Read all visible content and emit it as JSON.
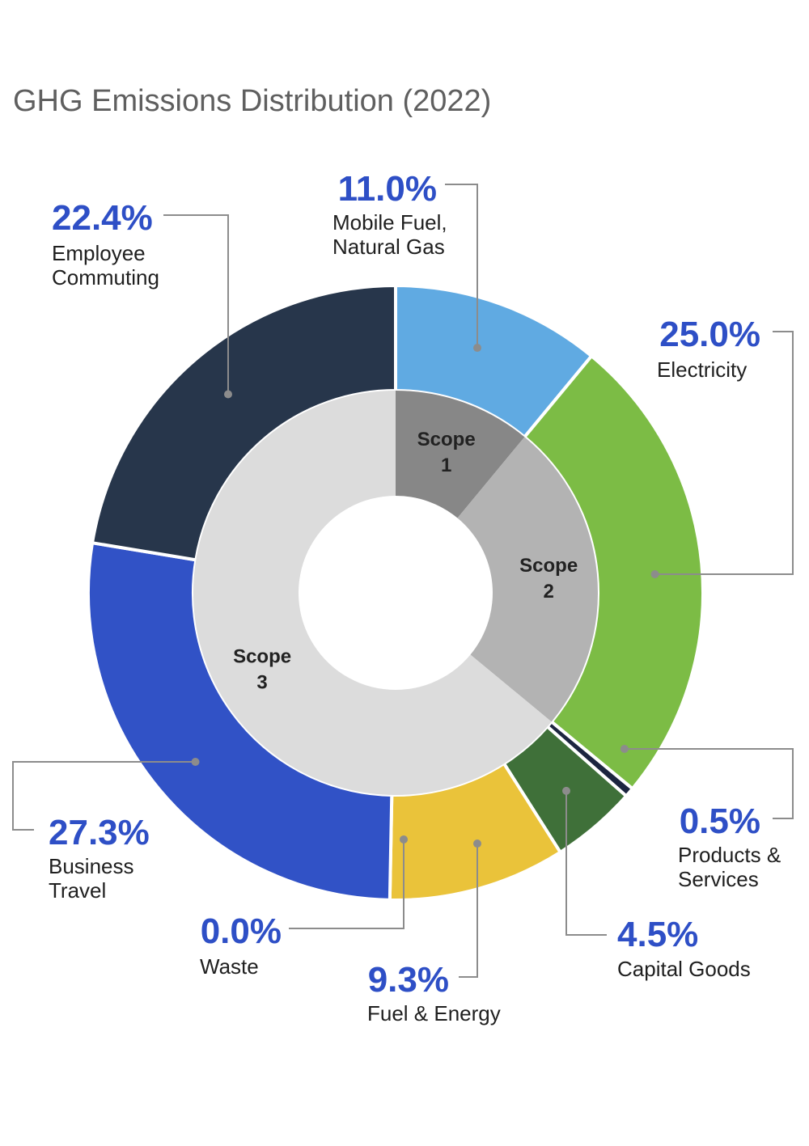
{
  "chart_data": {
    "type": "donut",
    "title": "GHG Emissions Distribution (2022)",
    "unit": "%",
    "inner_ring": [
      {
        "name": "Scope 1",
        "line1": "Scope",
        "line2": "1",
        "value": 11.0,
        "color": "#878787"
      },
      {
        "name": "Scope 2",
        "line1": "Scope",
        "line2": "2",
        "value": 25.0,
        "color": "#b3b3b3"
      },
      {
        "name": "Scope 3",
        "line1": "Scope",
        "line2": "3",
        "value": 64.0,
        "color": "#dcdcdc"
      }
    ],
    "outer_ring": [
      {
        "name": "Mobile Fuel, Natural Gas",
        "lines": [
          "Mobile Fuel,",
          "Natural Gas"
        ],
        "value": 11.0,
        "label": "11.0%",
        "color": "#60aae2",
        "scope": "Scope 1"
      },
      {
        "name": "Electricity",
        "lines": [
          "Electricity"
        ],
        "value": 25.0,
        "label": "25.0%",
        "color": "#7cbc45",
        "scope": "Scope 2"
      },
      {
        "name": "Products & Services",
        "lines": [
          "Products &",
          "Services"
        ],
        "value": 0.5,
        "label": "0.5%",
        "color": "#1c2540",
        "scope": "Scope 3"
      },
      {
        "name": "Capital Goods",
        "lines": [
          "Capital Goods"
        ],
        "value": 4.5,
        "label": "4.5%",
        "color": "#3f7039",
        "scope": "Scope 3"
      },
      {
        "name": "Fuel & Energy",
        "lines": [
          "Fuel & Energy"
        ],
        "value": 9.3,
        "label": "9.3%",
        "color": "#eac33a",
        "scope": "Scope 3"
      },
      {
        "name": "Waste",
        "lines": [
          "Waste"
        ],
        "value": 0.0,
        "label": "0.0%",
        "color": "#999999",
        "scope": "Scope 3"
      },
      {
        "name": "Business Travel",
        "lines": [
          "Business",
          "Travel"
        ],
        "value": 27.3,
        "label": "27.3%",
        "color": "#3152c6",
        "scope": "Scope 3"
      },
      {
        "name": "Employee Commuting",
        "lines": [
          "Employee",
          "Commuting"
        ],
        "value": 22.4,
        "label": "22.4%",
        "color": "#27364b",
        "scope": "Scope 3"
      }
    ]
  }
}
